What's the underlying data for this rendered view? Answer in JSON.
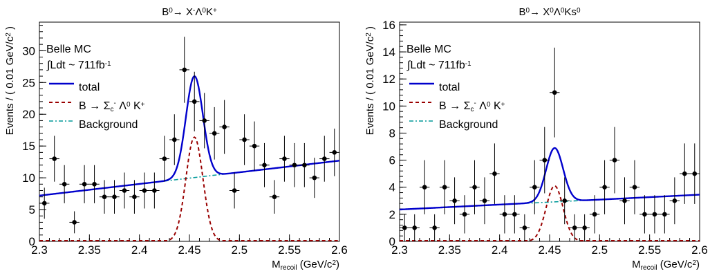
{
  "chart_data": [
    {
      "type": "scatter",
      "title_html": "B<sup>0</sup>→ X<sup>-</sup>Λ<sup>0</sup>K<sup>+</sup>",
      "title_text": "B0→ X-Λ0K+",
      "ylabel": "Events / ( 0.01 GeV/c2 )",
      "xlabel": "Mrecoil (GeV/c2)",
      "xlim": [
        2.3,
        2.6
      ],
      "ylim": [
        0,
        34.5
      ],
      "xticks": [
        "2.3",
        "2.35",
        "2.4",
        "2.45",
        "2.5",
        "2.55",
        "2.6"
      ],
      "yticks": [
        0,
        5,
        10,
        15,
        20,
        25,
        30
      ],
      "grid": false,
      "legend": {
        "header1": "Belle MC",
        "header2": "∫Ldt ~ 711fb-1",
        "entries": [
          "total",
          "B → Σc- Λ0 K+",
          "Background"
        ]
      },
      "colors": {
        "total": "#0000cc",
        "signal": "#990000",
        "background": "#009999",
        "data": "#000000"
      },
      "data_points": {
        "x": [
          2.305,
          2.315,
          2.325,
          2.335,
          2.345,
          2.355,
          2.365,
          2.375,
          2.385,
          2.395,
          2.405,
          2.415,
          2.425,
          2.435,
          2.445,
          2.455,
          2.465,
          2.475,
          2.485,
          2.495,
          2.505,
          2.515,
          2.525,
          2.535,
          2.545,
          2.555,
          2.565,
          2.575,
          2.585,
          2.595
        ],
        "y": [
          6,
          13,
          9,
          3,
          9,
          9,
          7,
          7,
          8,
          7,
          8,
          8,
          13,
          16,
          27,
          22,
          19,
          17,
          18,
          8,
          16,
          15,
          12,
          7,
          13,
          12,
          12,
          10,
          13,
          14
        ]
      },
      "curves": {
        "background": {
          "x": [
            2.3,
            2.6
          ],
          "y": [
            7.2,
            12.7
          ]
        },
        "total_peak": 26,
        "signal_peak": 16.4,
        "peak_center": 2.455
      }
    },
    {
      "type": "scatter",
      "title_html": "B<sup>0</sup>→ X<sup>0</sup>Λ<sup>0</sup>Ks<sup>0</sup>",
      "title_text": "B0→ X0Λ0Ks0",
      "ylabel": "Events / ( 0.01 GeV/c2 )",
      "xlabel": "Mrecoil (GeV/c2)",
      "xlim": [
        2.3,
        2.6
      ],
      "ylim": [
        0,
        16.2
      ],
      "xticks": [
        "2.3",
        "2.35",
        "2.4",
        "2.45",
        "2.5",
        "2.55",
        "2.6"
      ],
      "yticks": [
        0,
        2,
        4,
        6,
        8,
        10,
        12,
        14,
        16
      ],
      "grid": false,
      "legend": {
        "header1": "Belle MC",
        "header2": "∫Ldt ~ 711fb-1",
        "entries": [
          "total",
          "B → Σc- Λ0 K+",
          "Background"
        ]
      },
      "colors": {
        "total": "#0000cc",
        "signal": "#990000",
        "background": "#009999",
        "data": "#000000"
      },
      "data_points": {
        "x": [
          2.305,
          2.315,
          2.325,
          2.335,
          2.345,
          2.355,
          2.365,
          2.375,
          2.385,
          2.395,
          2.405,
          2.415,
          2.425,
          2.435,
          2.445,
          2.455,
          2.465,
          2.475,
          2.485,
          2.495,
          2.505,
          2.515,
          2.525,
          2.535,
          2.545,
          2.555,
          2.565,
          2.575,
          2.585,
          2.595
        ],
        "y": [
          1,
          1,
          4,
          1,
          4,
          3,
          2,
          4,
          3,
          5,
          2,
          2,
          1,
          4,
          6,
          11,
          3,
          1,
          1,
          2,
          4,
          6,
          3,
          4,
          2,
          2,
          2,
          3,
          5,
          5
        ]
      },
      "curves": {
        "background": {
          "x": [
            2.3,
            2.6
          ],
          "y": [
            2.35,
            3.45
          ]
        },
        "total_peak": 6.9,
        "signal_peak": 4.1,
        "peak_center": 2.455
      }
    }
  ]
}
